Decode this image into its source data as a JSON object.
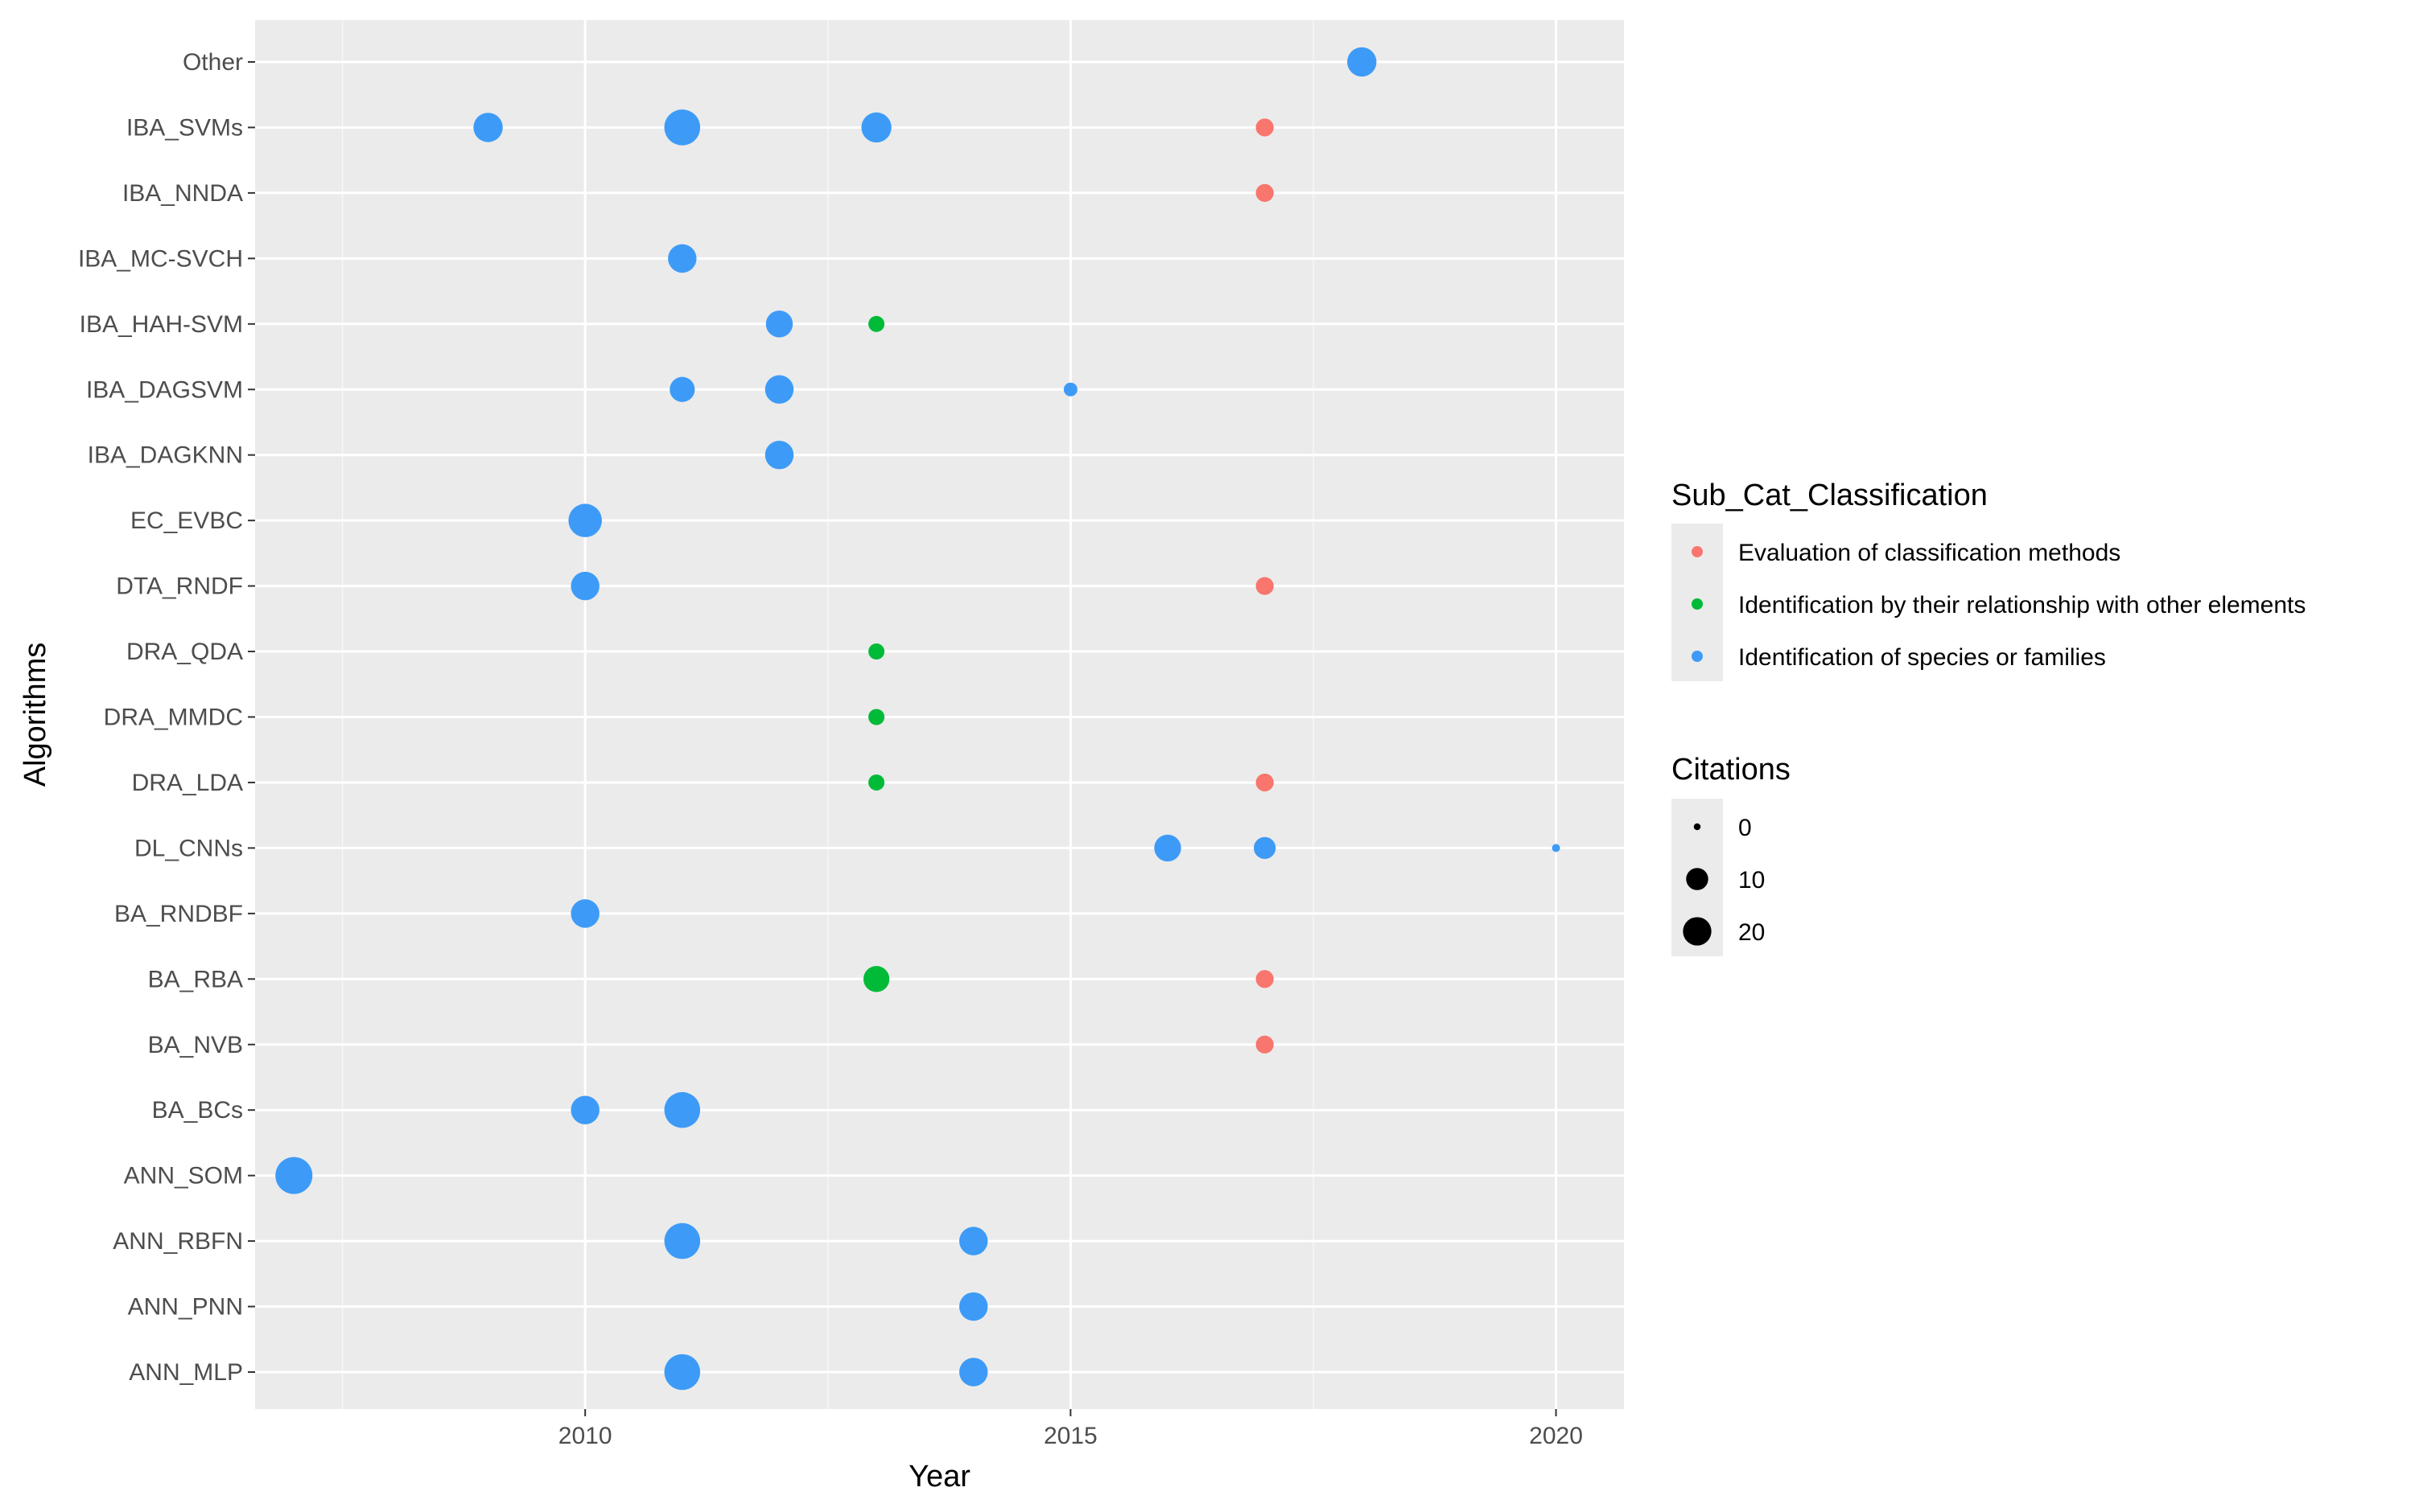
{
  "chart_data": {
    "type": "scatter",
    "xlabel": "Year",
    "ylabel": "Algorithms",
    "xlim": [
      2006.6,
      2020.7
    ],
    "x_ticks": [
      "2010",
      "2015",
      "2020"
    ],
    "x_tick_values": [
      2010,
      2015,
      2020
    ],
    "categories": [
      "ANN_MLP",
      "ANN_PNN",
      "ANN_RBFN",
      "ANN_SOM",
      "BA_BCs",
      "BA_NVB",
      "BA_RBA",
      "BA_RNDBF",
      "DL_CNNs",
      "DRA_LDA",
      "DRA_MMDC",
      "DRA_QDA",
      "DTA_RNDF",
      "EC_EVBC",
      "IBA_DAGKNN",
      "IBA_DAGSVM",
      "IBA_HAH-SVM",
      "IBA_MC-SVCH",
      "IBA_NNDA",
      "IBA_SVMs",
      "Other"
    ],
    "color_legend": {
      "title": "Sub_Cat_Classification",
      "entries": [
        {
          "label": "Evaluation of classification methods",
          "color": "#F8766D"
        },
        {
          "label": "Identification by their relationship with other elements",
          "color": "#00BA38"
        },
        {
          "label": "Identification of species or families",
          "color": "#3D9BF7"
        }
      ]
    },
    "size_legend": {
      "title": "Citations",
      "entries": [
        {
          "label": "0",
          "value": 0
        },
        {
          "label": "10",
          "value": 10
        },
        {
          "label": "20",
          "value": 20
        }
      ]
    },
    "points": [
      {
        "algorithm": "Other",
        "year": 2018,
        "citations": 14,
        "group": 2
      },
      {
        "algorithm": "IBA_SVMs",
        "year": 2009,
        "citations": 14,
        "group": 2
      },
      {
        "algorithm": "IBA_SVMs",
        "year": 2011,
        "citations": 24,
        "group": 2
      },
      {
        "algorithm": "IBA_SVMs",
        "year": 2013,
        "citations": 15,
        "group": 2
      },
      {
        "algorithm": "IBA_SVMs",
        "year": 2017,
        "citations": 3,
        "group": 0
      },
      {
        "algorithm": "IBA_NNDA",
        "year": 2017,
        "citations": 3,
        "group": 0
      },
      {
        "algorithm": "IBA_MC-SVCH",
        "year": 2011,
        "citations": 13,
        "group": 2
      },
      {
        "algorithm": "IBA_HAH-SVM",
        "year": 2012,
        "citations": 11,
        "group": 2
      },
      {
        "algorithm": "IBA_HAH-SVM",
        "year": 2013,
        "citations": 2,
        "group": 1
      },
      {
        "algorithm": "IBA_DAGSVM",
        "year": 2011,
        "citations": 9,
        "group": 2
      },
      {
        "algorithm": "IBA_DAGSVM",
        "year": 2012,
        "citations": 13,
        "group": 2
      },
      {
        "algorithm": "IBA_DAGSVM",
        "year": 2015,
        "citations": 1,
        "group": 2
      },
      {
        "algorithm": "IBA_DAGKNN",
        "year": 2012,
        "citations": 13,
        "group": 2
      },
      {
        "algorithm": "EC_EVBC",
        "year": 2010,
        "citations": 20,
        "group": 2
      },
      {
        "algorithm": "DTA_RNDF",
        "year": 2010,
        "citations": 13,
        "group": 2
      },
      {
        "algorithm": "DTA_RNDF",
        "year": 2017,
        "citations": 3,
        "group": 0
      },
      {
        "algorithm": "DRA_QDA",
        "year": 2013,
        "citations": 2,
        "group": 1
      },
      {
        "algorithm": "DRA_MMDC",
        "year": 2013,
        "citations": 2,
        "group": 1
      },
      {
        "algorithm": "DRA_LDA",
        "year": 2013,
        "citations": 2,
        "group": 1
      },
      {
        "algorithm": "DRA_LDA",
        "year": 2017,
        "citations": 3,
        "group": 0
      },
      {
        "algorithm": "DL_CNNs",
        "year": 2016,
        "citations": 11,
        "group": 2
      },
      {
        "algorithm": "DL_CNNs",
        "year": 2017,
        "citations": 6,
        "group": 2
      },
      {
        "algorithm": "DL_CNNs",
        "year": 2020,
        "citations": 0,
        "group": 2
      },
      {
        "algorithm": "BA_RNDBF",
        "year": 2010,
        "citations": 13,
        "group": 2
      },
      {
        "algorithm": "BA_RBA",
        "year": 2013,
        "citations": 10,
        "group": 1
      },
      {
        "algorithm": "BA_RBA",
        "year": 2017,
        "citations": 3,
        "group": 0
      },
      {
        "algorithm": "BA_NVB",
        "year": 2017,
        "citations": 3,
        "group": 0
      },
      {
        "algorithm": "BA_BCs",
        "year": 2010,
        "citations": 13,
        "group": 2
      },
      {
        "algorithm": "BA_BCs",
        "year": 2011,
        "citations": 24,
        "group": 2
      },
      {
        "algorithm": "ANN_SOM",
        "year": 2007,
        "citations": 26,
        "group": 2
      },
      {
        "algorithm": "ANN_RBFN",
        "year": 2011,
        "citations": 24,
        "group": 2
      },
      {
        "algorithm": "ANN_RBFN",
        "year": 2014,
        "citations": 13,
        "group": 2
      },
      {
        "algorithm": "ANN_PNN",
        "year": 2014,
        "citations": 13,
        "group": 2
      },
      {
        "algorithm": "ANN_MLP",
        "year": 2011,
        "citations": 24,
        "group": 2
      },
      {
        "algorithm": "ANN_MLP",
        "year": 2014,
        "citations": 13,
        "group": 2
      }
    ]
  }
}
